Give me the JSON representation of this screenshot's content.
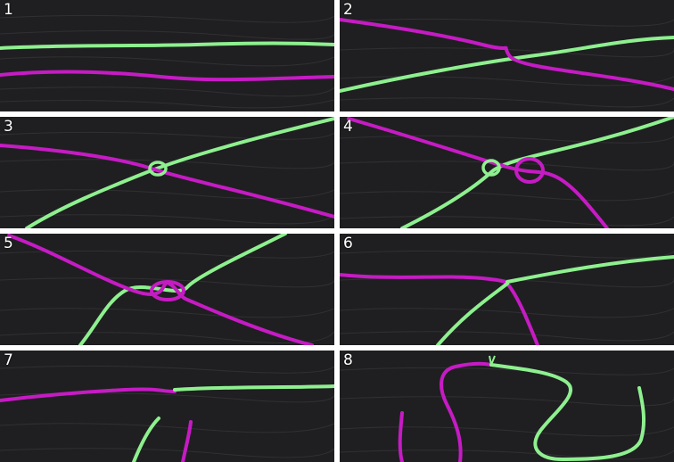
{
  "colors": {
    "background": "#ffffff",
    "wood": "#1f1f21",
    "grain": "#3a3a3d",
    "green_yarn": "#8ef08f",
    "magenta_yarn": "#c61bc4"
  },
  "panels": [
    {
      "step": "1"
    },
    {
      "step": "2"
    },
    {
      "step": "3"
    },
    {
      "step": "4"
    },
    {
      "step": "5"
    },
    {
      "step": "6"
    },
    {
      "step": "7"
    },
    {
      "step": "8"
    }
  ]
}
